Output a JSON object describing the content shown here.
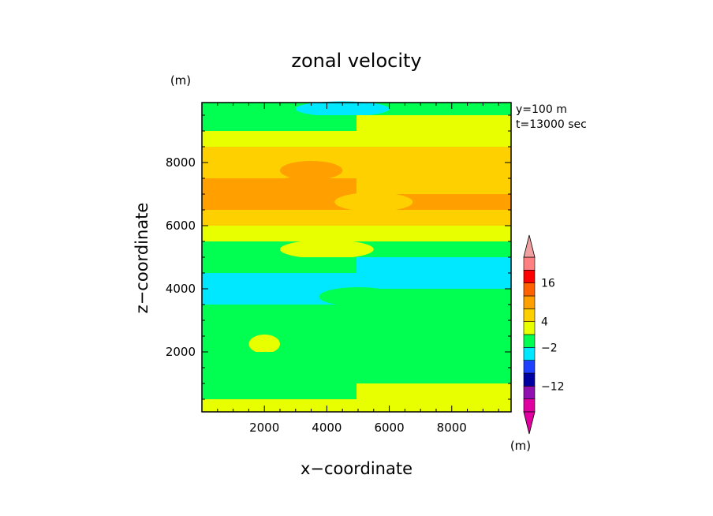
{
  "chart_data": {
    "type": "heatmap",
    "title": "zonal velocity",
    "xlabel": "x−coordinate",
    "ylabel": "z−coordinate",
    "y_unit": "(m)",
    "colorbar_unit": "(m)",
    "annotations": [
      "y=100 m",
      "t=13000 sec"
    ],
    "xlim": [
      0,
      9900
    ],
    "ylim": [
      100,
      9900
    ],
    "x_ticks": [
      2000,
      4000,
      6000,
      8000
    ],
    "y_ticks": [
      2000,
      4000,
      6000,
      8000
    ],
    "x_tick_labels": [
      "2000",
      "4000",
      "6000",
      "8000"
    ],
    "y_tick_labels": [
      "2000",
      "4000",
      "6000",
      "8000"
    ],
    "colorbar": {
      "colors": [
        "#e000a0",
        "#9010b0",
        "#0000a0",
        "#2040ff",
        "#00e8ff",
        "#00ff50",
        "#e8ff00",
        "#ffd000",
        "#ffa000",
        "#ff6000",
        "#ff0000",
        "#ff8080"
      ],
      "ext_low_color": "#e000a0",
      "ext_high_color": "#f0a0a0",
      "tick_labels": [
        {
          "text": "16",
          "index": 10
        },
        {
          "text": "4",
          "index": 7
        },
        {
          "text": "−2",
          "index": 5
        },
        {
          "text": "−12",
          "index": 2
        }
      ]
    },
    "bands": [
      {
        "z": 9900,
        "left": 1,
        "right": 1,
        "blob_x": 4500,
        "blob_w": 3000,
        "blob_c": 0
      },
      {
        "z": 9500,
        "left": 1,
        "right": 2,
        "blob_x": 2000,
        "blob_w": 2500,
        "blob_c": 1
      },
      {
        "z": 9000,
        "left": 2,
        "right": 2
      },
      {
        "z": 8500,
        "left": 3,
        "right": 3
      },
      {
        "z": 8000,
        "left": 3,
        "right": 3,
        "blob_x": 3500,
        "blob_w": 2000,
        "blob_c": 4
      },
      {
        "z": 7500,
        "left": 4,
        "right": 3,
        "blob_x": 3200,
        "blob_w": 2000,
        "blob_c": 4
      },
      {
        "z": 7000,
        "left": 4,
        "right": 4,
        "blob_x": 5500,
        "blob_w": 2500,
        "blob_c": 3
      },
      {
        "z": 6500,
        "left": 3,
        "right": 3
      },
      {
        "z": 6000,
        "left": 2,
        "right": 2
      },
      {
        "z": 5500,
        "left": 1,
        "right": 1,
        "blob_x": 4000,
        "blob_w": 3000,
        "blob_c": 2
      },
      {
        "z": 5000,
        "left": 1,
        "right": 0
      },
      {
        "z": 4500,
        "left": 0,
        "right": 0
      },
      {
        "z": 4000,
        "left": 0,
        "right": 1,
        "blob_x": 5000,
        "blob_w": 2500,
        "blob_c": 1
      },
      {
        "z": 3500,
        "left": 1,
        "right": 1
      },
      {
        "z": 3000,
        "left": 1,
        "right": 1
      },
      {
        "z": 2500,
        "left": 1,
        "right": 1,
        "blob_x": 2000,
        "blob_w": 1000,
        "blob_c": 2
      },
      {
        "z": 2000,
        "left": 1,
        "right": 1
      },
      {
        "z": 1500,
        "left": 1,
        "right": 1
      },
      {
        "z": 1000,
        "left": 1,
        "right": 2
      },
      {
        "z": 500,
        "left": 2,
        "right": 2
      },
      {
        "z": 100,
        "left": 2,
        "right": 2,
        "blob_x": 4500,
        "blob_w": 2500,
        "blob_c": 3
      }
    ],
    "band_colors": [
      "#00e8ff",
      "#00ff50",
      "#e8ff00",
      "#ffd000",
      "#ffa000"
    ]
  }
}
